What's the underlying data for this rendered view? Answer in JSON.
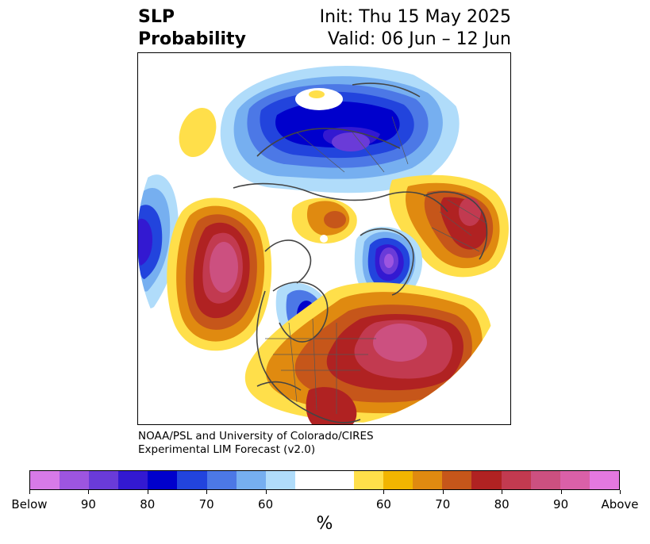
{
  "title": {
    "variable": "SLP",
    "type": "Probability",
    "init": "Init: Thu 15 May 2025",
    "valid": "Valid: 06 Jun – 12 Jun"
  },
  "credit": {
    "line1": "NOAA/PSL and University of Colorado/CIRES",
    "line2": "Experimental LIM Forecast (v2.0)"
  },
  "colorbar": {
    "colors": [
      "#d77ae8",
      "#9d55e0",
      "#6a3bd8",
      "#3319d1",
      "#0000cc",
      "#2244dd",
      "#4c78e6",
      "#76aff0",
      "#b0dcfa",
      "#ffffff",
      "#ffffff",
      "#ffdf4a",
      "#f2b500",
      "#e08a10",
      "#c6561a",
      "#b02222",
      "#c23a50",
      "#cc5080",
      "#da60a8",
      "#e478e0"
    ],
    "tick_labels": [
      "Below",
      "90",
      "80",
      "70",
      "60",
      "60",
      "70",
      "80",
      "90",
      "Above"
    ],
    "unit": "%"
  },
  "map": {
    "projection": "north polar stereographic",
    "field": "sea level pressure tercile probability",
    "features": [
      "Below-normal center over Arctic/Siberia",
      "Below-normal center near Greenland/Iceland",
      "Below-normal center over Hudson Bay region",
      "Below-normal center over the northeast Pacific edge",
      "Above-normal center over the North Pacific",
      "Above-normal center over the North Atlantic",
      "Above-normal center over northern Europe",
      "Above-normal over southern United States"
    ]
  }
}
